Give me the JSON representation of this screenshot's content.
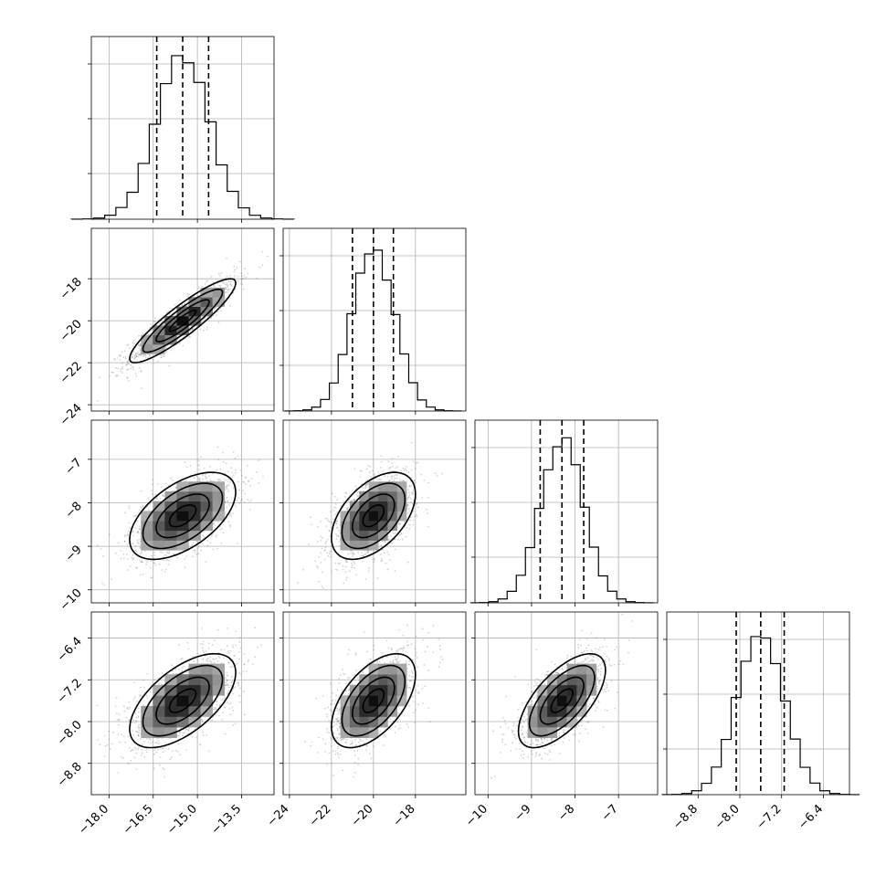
{
  "chart_data": {
    "type": "corner",
    "params": [
      {
        "mean": -15.5,
        "sd": 0.9,
        "quantiles": [
          -16.38,
          -15.5,
          -14.62
        ],
        "range": [
          -18.6,
          -12.4
        ],
        "ticks": [
          -18.0,
          -16.5,
          -15.0,
          -13.5
        ],
        "tick_labels": [
          "−18.0",
          "−16.5",
          "−15.0",
          "−13.5"
        ]
      },
      {
        "mean": -20.0,
        "sd": 1.0,
        "quantiles": [
          -21.0,
          -20.0,
          -19.05
        ],
        "range": [
          -24.3,
          -15.6
        ],
        "ticks": [
          -24,
          -22,
          -20,
          -18
        ],
        "tick_labels": [
          "−24",
          "−22",
          "−20",
          "−18"
        ]
      },
      {
        "mean": -8.3,
        "sd": 0.5,
        "quantiles": [
          -8.8,
          -8.3,
          -7.8
        ],
        "range": [
          -10.3,
          -6.1
        ],
        "ticks": [
          -10,
          -9,
          -8,
          -7
        ],
        "tick_labels": [
          "−10",
          "−9",
          "−8",
          "−7"
        ]
      },
      {
        "mean": -7.6,
        "sd": 0.45,
        "quantiles": [
          -8.07,
          -7.6,
          -7.15
        ],
        "range": [
          -9.4,
          -5.9
        ],
        "ticks": [
          -8.8,
          -8.0,
          -7.2,
          -6.4
        ],
        "tick_labels": [
          "−8.8",
          "−8.0",
          "−7.2",
          "−6.4"
        ]
      }
    ],
    "correlations": [
      [
        1,
        0.9,
        0.55,
        0.6
      ],
      [
        0.9,
        1,
        0.5,
        0.55
      ],
      [
        0.55,
        0.5,
        1,
        0.65
      ],
      [
        0.6,
        0.55,
        0.65,
        1
      ]
    ],
    "hist_bins": 20,
    "contour_levels": [
      0.5,
      1.0,
      1.5,
      2.0
    ],
    "grid": true,
    "colors": {
      "line": "#000000",
      "points": "#808080",
      "grid": "#b0b0b0"
    }
  }
}
